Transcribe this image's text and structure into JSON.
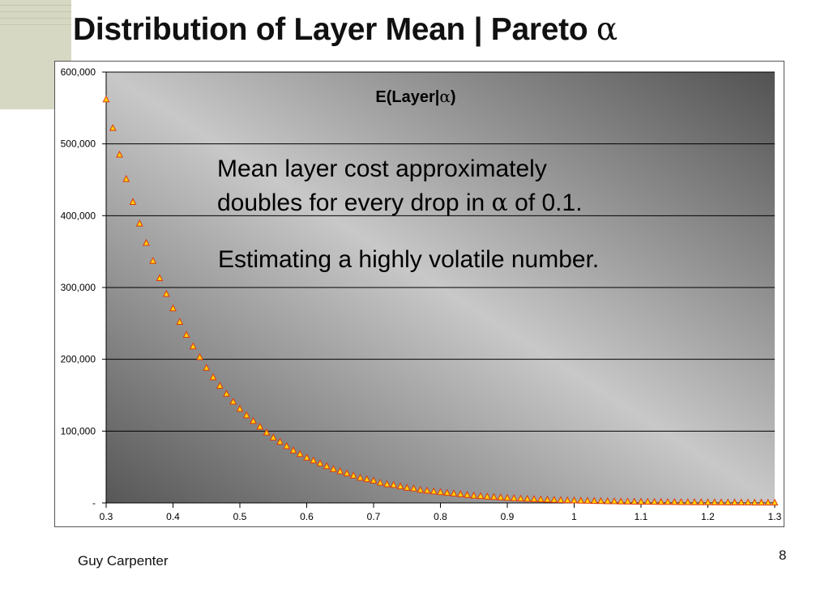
{
  "slide": {
    "title_text": "Distribution of Layer Mean | Pareto ",
    "title_symbol": "α",
    "footer": "Guy Carpenter",
    "page_number": "8"
  },
  "chart_data": {
    "type": "scatter",
    "title_prefix": "E(Layer|",
    "title_symbol": "α",
    "title_suffix": ")",
    "xlim": [
      0.3,
      1.3
    ],
    "ylim": [
      0,
      600000
    ],
    "x_ticks": [
      "0.3",
      "0.4",
      "0.5",
      "0.6",
      "0.7",
      "0.8",
      "0.9",
      "1",
      "1.1",
      "1.2",
      "1.3"
    ],
    "y_ticks": [
      "-",
      "100,000",
      "200,000",
      "300,000",
      "400,000",
      "500,000",
      "600,000"
    ],
    "grid": true,
    "marker": "triangle",
    "marker_fill": "#ffd400",
    "marker_stroke": "#e0390b",
    "series": [
      {
        "x": [
          0.3,
          0.31,
          0.32,
          0.33,
          0.34,
          0.35,
          0.36,
          0.37,
          0.38,
          0.39,
          0.4,
          0.41,
          0.42,
          0.43,
          0.44,
          0.45,
          0.46,
          0.47,
          0.48,
          0.49,
          0.5,
          0.51,
          0.52,
          0.53,
          0.54,
          0.55,
          0.56,
          0.57,
          0.58,
          0.59,
          0.6,
          0.61,
          0.62,
          0.63,
          0.64,
          0.65,
          0.66,
          0.67,
          0.68,
          0.69,
          0.7,
          0.71,
          0.72,
          0.73,
          0.74,
          0.75,
          0.76,
          0.77,
          0.78,
          0.79,
          0.8,
          0.81,
          0.82,
          0.83,
          0.84,
          0.85,
          0.86,
          0.87,
          0.88,
          0.89,
          0.9,
          0.91,
          0.92,
          0.93,
          0.94,
          0.95,
          0.96,
          0.97,
          0.98,
          0.99,
          1.0,
          1.01,
          1.02,
          1.03,
          1.04,
          1.05,
          1.06,
          1.07,
          1.08,
          1.09,
          1.1,
          1.11,
          1.12,
          1.13,
          1.14,
          1.15,
          1.16,
          1.17,
          1.18,
          1.19,
          1.2,
          1.21,
          1.22,
          1.23,
          1.24,
          1.25,
          1.26,
          1.27,
          1.28,
          1.29,
          1.3
        ],
        "y": [
          562000,
          522000,
          485000,
          451000,
          419000,
          389000,
          362000,
          337000,
          313000,
          291000,
          271000,
          252000,
          234000,
          218000,
          203000,
          188000,
          175000,
          163000,
          152000,
          141000,
          131000,
          122000,
          114000,
          106000,
          98000,
          91000,
          85000,
          79000,
          73000,
          68000,
          63000,
          59000,
          55000,
          51000,
          47000,
          44000,
          41000,
          38000,
          35000,
          33000,
          31000,
          28000,
          26000,
          25000,
          23000,
          21000,
          20000,
          18000,
          17000,
          16000,
          15000,
          14000,
          13000,
          12000,
          11000,
          10000,
          9500,
          8800,
          8200,
          7600,
          7000,
          6500,
          6000,
          5600,
          5200,
          4900,
          4500,
          4200,
          3900,
          3600,
          3400,
          3100,
          2900,
          2700,
          2500,
          2300,
          2200,
          2000,
          1900,
          1700,
          1600,
          1500,
          1400,
          1300,
          1200,
          1100,
          1050,
          970,
          900,
          840,
          780,
          720,
          670,
          620,
          580,
          540,
          500,
          460,
          430,
          400,
          370
        ]
      }
    ]
  },
  "annotations": {
    "line1": "Mean layer cost approximately",
    "line2_prefix": "doubles for every drop in ",
    "line2_symbol": "α",
    "line2_suffix": " of 0.1.",
    "line3": "Estimating a highly volatile number."
  }
}
